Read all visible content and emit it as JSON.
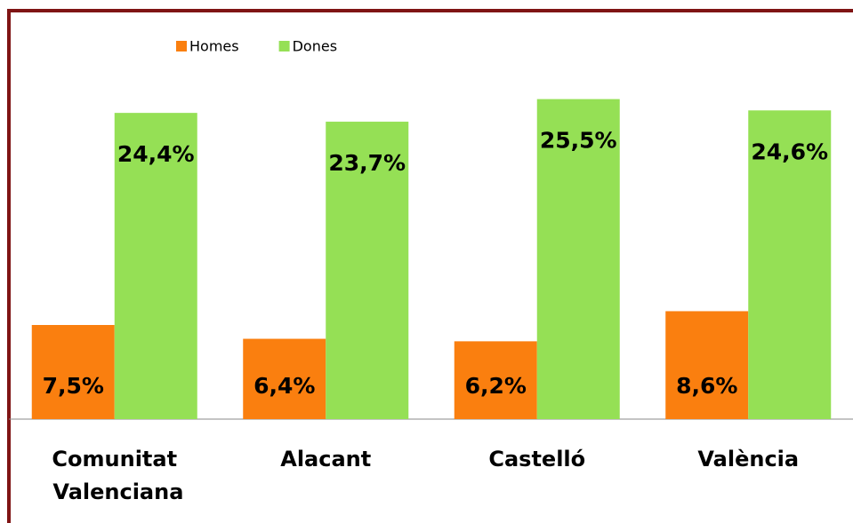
{
  "chart_data": {
    "type": "bar",
    "categories": [
      "Comunitat Valenciana",
      "Alacant",
      "Castelló",
      "València"
    ],
    "series": [
      {
        "name": "Homes",
        "color": "#fa7f0f",
        "values": [
          7.5,
          6.4,
          6.2,
          8.6
        ],
        "value_labels": [
          "7,5%",
          "6,4%",
          "6,2%",
          "8,6%"
        ]
      },
      {
        "name": "Dones",
        "color": "#95e055",
        "values": [
          24.4,
          23.7,
          25.5,
          24.6
        ],
        "value_labels": [
          "24,4%",
          "23,7%",
          "25,5%",
          "24,6%"
        ]
      }
    ],
    "ylim": [
      0,
      30
    ],
    "legend": "top"
  }
}
